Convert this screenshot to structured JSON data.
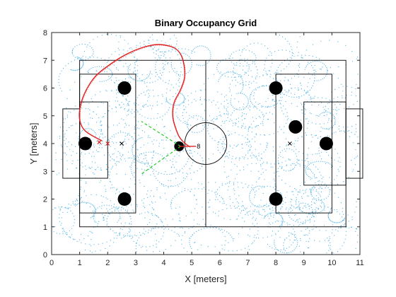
{
  "chart_data": {
    "type": "scatter",
    "title": "Binary Occupancy Grid",
    "xlabel": "X [meters]",
    "ylabel": "Y [meters]",
    "xlim": [
      0,
      11
    ],
    "ylim": [
      0,
      8
    ],
    "xticks": [
      "0",
      "1",
      "2",
      "3",
      "4",
      "5",
      "6",
      "7",
      "8",
      "9",
      "10",
      "11"
    ],
    "yticks": [
      "0",
      "1",
      "2",
      "3",
      "4",
      "5",
      "6",
      "7",
      "8"
    ],
    "grid": false,
    "colors": {
      "field_lines": "#000000",
      "obstacles": "#000000",
      "trajectory_dots": "#4db3e6",
      "robot_path": "#e02020",
      "vision_lines": "#22cc22",
      "axes": "#262626"
    },
    "field": {
      "outer": [
        1,
        1,
        10.5,
        7
      ],
      "center_line_x": 5.5,
      "center_circle": {
        "cx": 5.5,
        "cy": 4,
        "r": 0.75
      },
      "left_penalty": [
        1,
        1.5,
        3,
        6.5
      ],
      "left_goal_area": [
        1,
        2.75,
        2,
        5.5
      ],
      "left_goal": [
        0.4,
        2.75,
        1,
        5.25
      ],
      "right_penalty": [
        8,
        1.5,
        10,
        6.5
      ],
      "right_goal_area": [
        9,
        2.5,
        10.5,
        5.5
      ],
      "right_goal": [
        10.5,
        2.75,
        11.1,
        5.25
      ],
      "left_penalty_spot": [
        2.5,
        4
      ],
      "right_penalty_spot": [
        8.5,
        4
      ]
    },
    "obstacles": [
      {
        "x": 2.6,
        "y": 6.0
      },
      {
        "x": 1.2,
        "y": 4.0
      },
      {
        "x": 2.6,
        "y": 2.0
      },
      {
        "x": 8.0,
        "y": 6.0
      },
      {
        "x": 8.7,
        "y": 4.6
      },
      {
        "x": 9.8,
        "y": 4.0
      },
      {
        "x": 8.0,
        "y": 2.0
      },
      {
        "x": 4.55,
        "y": 3.9
      }
    ],
    "robot": {
      "x": 4.9,
      "y": 3.9,
      "label": "8"
    },
    "path": [
      [
        4.9,
        3.9
      ],
      [
        4.6,
        4.1
      ],
      [
        4.4,
        4.6
      ],
      [
        4.3,
        5.0
      ],
      [
        4.35,
        5.5
      ],
      [
        4.6,
        5.9
      ],
      [
        4.8,
        6.5
      ],
      [
        4.6,
        7.4
      ],
      [
        3.9,
        7.6
      ],
      [
        3.3,
        7.5
      ],
      [
        2.6,
        7.2
      ],
      [
        2.0,
        6.8
      ],
      [
        1.5,
        6.4
      ],
      [
        1.1,
        5.7
      ],
      [
        0.95,
        5.0
      ],
      [
        1.1,
        4.5
      ],
      [
        1.5,
        4.25
      ],
      [
        1.8,
        4.1
      ]
    ],
    "targets": [
      [
        1.7,
        4.05
      ],
      [
        2.0,
        4.0
      ]
    ],
    "vision_lines": [
      [
        [
          4.6,
          3.9
        ],
        [
          3.2,
          4.8
        ]
      ],
      [
        [
          4.6,
          3.9
        ],
        [
          3.2,
          2.9
        ]
      ]
    ]
  }
}
